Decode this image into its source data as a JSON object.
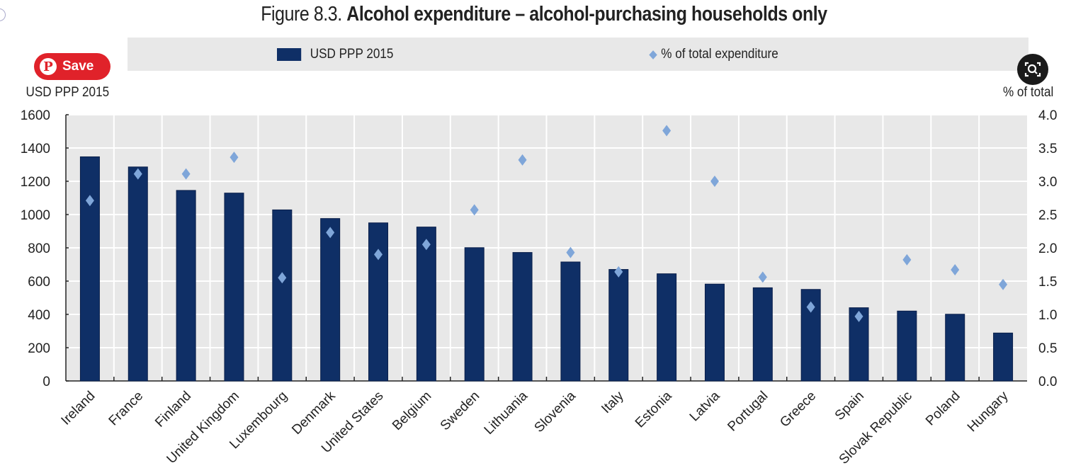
{
  "title_prefix": "Figure 8.3.",
  "title_bold": "Alcohol expenditure – alcohol-purchasing households only",
  "overlay": {
    "pin_save_label": "Save",
    "pin_icon": "pinterest-icon",
    "lens_icon": "visual-search-icon"
  },
  "chart_data": {
    "type": "bar",
    "title": "Alcohol expenditure – alcohol-purchasing households only",
    "categories": [
      "Ireland",
      "France",
      "Finland",
      "United Kingdom",
      "Luxembourg",
      "Denmark",
      "United States",
      "Belgium",
      "Sweden",
      "Lithuania",
      "Slovenia",
      "Italy",
      "Estonia",
      "Latvia",
      "Portugal",
      "Greece",
      "Spain",
      "Slovak Republic",
      "Poland",
      "Hungary"
    ],
    "series": [
      {
        "name": "USD PPP 2015",
        "type": "bar",
        "axis": "left",
        "color": "#0f2f66",
        "values": [
          1347,
          1286,
          1145,
          1129,
          1028,
          976,
          950,
          925,
          801,
          772,
          715,
          670,
          644,
          582,
          560,
          550,
          440,
          420,
          401,
          288
        ]
      },
      {
        "name": "% of total expenditure",
        "type": "scatter",
        "marker": "diamond",
        "axis": "right",
        "color": "#7fa6d9",
        "values": [
          2.71,
          3.11,
          3.11,
          3.36,
          1.55,
          2.23,
          1.9,
          2.05,
          2.57,
          3.32,
          1.93,
          1.64,
          3.76,
          3.0,
          1.56,
          1.11,
          0.97,
          1.82,
          1.67,
          1.45
        ]
      }
    ],
    "ylabel": "USD PPP 2015",
    "ylabel_right": "% of total",
    "ylim": [
      0,
      1600
    ],
    "ylim_right": [
      0,
      4.0
    ],
    "yticks": [
      "0",
      "200",
      "400",
      "600",
      "800",
      "1000",
      "1200",
      "1400",
      "1600"
    ],
    "yticks_right": [
      "0.0",
      "0.5",
      "1.0",
      "1.5",
      "2.0",
      "2.5",
      "3.0",
      "3.5",
      "4.0"
    ],
    "grid": true,
    "legend": "top"
  }
}
